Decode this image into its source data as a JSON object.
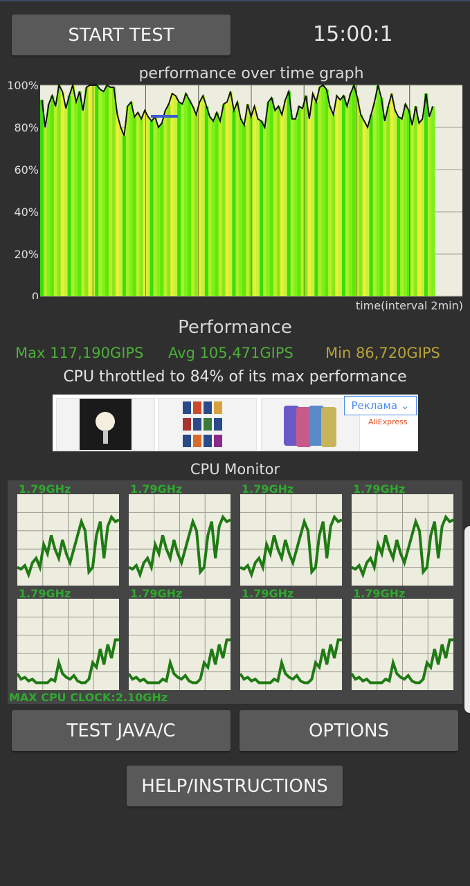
{
  "header": {
    "start_button": "START TEST",
    "timer": "15:00:1"
  },
  "perf_graph": {
    "title": "performance over time graph",
    "xlabel": "time(interval 2min)",
    "y_ticks": [
      "100%",
      "80%",
      "60%",
      "40%",
      "20%",
      "0"
    ]
  },
  "chart_data": {
    "type": "area",
    "title": "performance over time graph",
    "xlabel": "time(interval 2min)",
    "ylabel": "",
    "ylim": [
      0,
      100
    ],
    "y_ticks": [
      "0",
      "20%",
      "40%",
      "60%",
      "80%",
      "100%"
    ],
    "x": [
      0,
      1,
      2,
      3,
      4,
      5,
      6,
      7,
      8,
      9,
      10,
      11,
      12,
      13,
      14,
      15,
      16,
      17,
      18,
      19,
      20,
      21,
      22,
      23,
      24,
      25,
      26,
      27,
      28,
      29,
      30,
      31,
      32,
      33,
      34,
      35,
      36,
      37,
      38,
      39,
      40,
      41,
      42,
      43,
      44,
      45,
      46,
      47,
      48,
      49,
      50,
      51,
      52,
      53,
      54,
      55,
      56,
      57,
      58,
      59,
      60,
      61,
      62,
      63,
      64,
      65,
      66,
      67,
      68,
      69,
      70,
      71,
      72,
      73,
      74,
      75,
      76,
      77,
      78,
      79,
      80,
      81,
      82,
      83,
      84,
      85,
      86,
      87,
      88,
      89,
      90,
      91,
      92,
      93,
      94,
      95,
      96,
      97,
      98,
      99,
      100,
      101,
      102,
      103,
      104,
      105,
      106,
      107,
      108,
      109,
      110,
      111,
      112,
      113,
      114
    ],
    "values": [
      93,
      80,
      91,
      95,
      90,
      100,
      97,
      89,
      95,
      100,
      92,
      97,
      88,
      99,
      100,
      100,
      100,
      98,
      97,
      100,
      99,
      99,
      86,
      80,
      76,
      90,
      92,
      85,
      87,
      84,
      88,
      85,
      83,
      85,
      80,
      82,
      88,
      91,
      96,
      95,
      92,
      91,
      96,
      93,
      90,
      86,
      92,
      95,
      90,
      85,
      83,
      87,
      83,
      91,
      92,
      97,
      88,
      92,
      84,
      81,
      91,
      85,
      90,
      84,
      83,
      80,
      92,
      94,
      88,
      90,
      86,
      93,
      97,
      84,
      84,
      90,
      89,
      95,
      84,
      96,
      92,
      99,
      100,
      98,
      90,
      86,
      95,
      93,
      95,
      90,
      96,
      100,
      94,
      86,
      83,
      80,
      86,
      92,
      100,
      94,
      83,
      90,
      96,
      88,
      85,
      84,
      91,
      88,
      81,
      90,
      82,
      84,
      96,
      85,
      90
    ],
    "annotations": "blue horizontal marker near 85% at early time",
    "grid": true
  },
  "performance": {
    "title": "Performance",
    "max": "Max 117,190GIPS",
    "avg": "Avg 105,471GIPS",
    "min": "Min 86,720GIPS",
    "throttle": "CPU throttled to 84% of its max performance"
  },
  "ad": {
    "label": "Реклама",
    "brand": "AliExpress"
  },
  "cpu_monitor": {
    "title": "CPU Monitor",
    "max_clock": "MAX CPU CLOCK:2.10GHz",
    "cores": [
      {
        "freq": "1.79GHz",
        "values": [
          20,
          18,
          22,
          12,
          25,
          30,
          20,
          45,
          35,
          55,
          40,
          30,
          50,
          35,
          25,
          40,
          55,
          70,
          60,
          15,
          20,
          55,
          70,
          30,
          65,
          75,
          70,
          72
        ]
      },
      {
        "freq": "1.79GHz",
        "values": [
          20,
          18,
          22,
          12,
          25,
          30,
          20,
          45,
          35,
          55,
          40,
          30,
          50,
          35,
          25,
          40,
          55,
          70,
          60,
          15,
          20,
          55,
          70,
          30,
          65,
          75,
          70,
          72
        ]
      },
      {
        "freq": "1.79GHz",
        "values": [
          20,
          18,
          22,
          12,
          25,
          30,
          20,
          45,
          35,
          55,
          40,
          30,
          50,
          35,
          25,
          40,
          55,
          70,
          60,
          15,
          20,
          55,
          70,
          30,
          65,
          75,
          70,
          72
        ]
      },
      {
        "freq": "1.79GHz",
        "values": [
          20,
          18,
          22,
          12,
          25,
          30,
          20,
          45,
          35,
          55,
          40,
          30,
          50,
          35,
          25,
          40,
          55,
          70,
          60,
          15,
          20,
          55,
          70,
          30,
          65,
          75,
          70,
          72
        ]
      },
      {
        "freq": "1.79GHz",
        "values": [
          18,
          12,
          14,
          10,
          12,
          8,
          8,
          8,
          8,
          12,
          10,
          30,
          18,
          14,
          12,
          16,
          10,
          8,
          8,
          12,
          30,
          25,
          45,
          28,
          50,
          35,
          55,
          55
        ]
      },
      {
        "freq": "1.79GHz",
        "values": [
          18,
          12,
          14,
          10,
          12,
          8,
          8,
          8,
          8,
          12,
          10,
          30,
          18,
          14,
          12,
          16,
          10,
          8,
          8,
          12,
          30,
          25,
          45,
          28,
          50,
          35,
          55,
          55
        ]
      },
      {
        "freq": "1.79GHz",
        "values": [
          18,
          12,
          14,
          10,
          12,
          8,
          8,
          8,
          8,
          12,
          10,
          30,
          18,
          14,
          12,
          16,
          10,
          8,
          8,
          12,
          30,
          25,
          45,
          28,
          50,
          35,
          55,
          55
        ]
      },
      {
        "freq": "1.79GHz",
        "values": [
          18,
          12,
          14,
          10,
          12,
          8,
          8,
          8,
          8,
          12,
          10,
          30,
          18,
          14,
          12,
          16,
          10,
          8,
          8,
          12,
          30,
          25,
          45,
          28,
          50,
          35,
          55,
          55
        ]
      }
    ]
  },
  "buttons": {
    "java": "TEST JAVA/C",
    "options": "OPTIONS",
    "help": "HELP/INSTRUCTIONS"
  }
}
